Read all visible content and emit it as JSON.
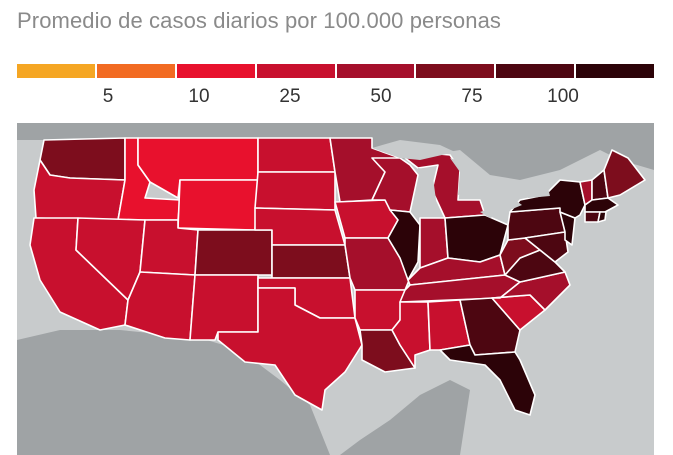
{
  "title": "Promedio de casos diarios por 100.000 personas",
  "legend": {
    "colors": [
      "#f5a623",
      "#f26b22",
      "#e8112d",
      "#c8102e",
      "#a50f2b",
      "#7d0d1d",
      "#4d0611",
      "#2c0308"
    ],
    "ticks": [
      "5",
      "10",
      "25",
      "50",
      "75",
      "100"
    ]
  },
  "map": {
    "ocean_color": "#c8cbcc",
    "land_color": "#9fa3a5",
    "lake_color": "#c8cbcc"
  }
}
